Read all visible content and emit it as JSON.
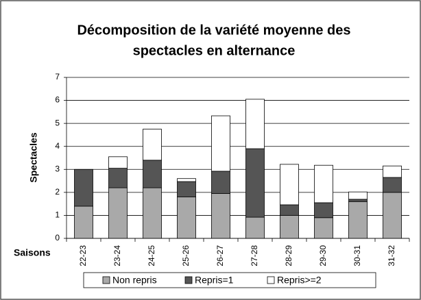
{
  "chart_data": {
    "type": "stacked_bar",
    "title": [
      "Décomposition de la variété moyenne des",
      "spectacles  en alternance"
    ],
    "xlabel": "Saisons",
    "ylabel": "Spectacles",
    "categories": [
      "22-23",
      "23-24",
      "24-25",
      "25-26",
      "26-27",
      "27-28",
      "28-29",
      "29-30",
      "30-31",
      "31-32"
    ],
    "series": [
      {
        "name": "Non repris",
        "color": "#a9a9a9",
        "values": [
          1.4,
          2.2,
          2.2,
          1.8,
          1.95,
          0.92,
          1.0,
          0.9,
          1.6,
          2.0
        ]
      },
      {
        "name": "Repris=1",
        "color": "#555555",
        "values": [
          1.6,
          0.85,
          1.2,
          0.67,
          0.97,
          2.98,
          0.46,
          0.65,
          0.1,
          0.65
        ]
      },
      {
        "name": "Repris>=2",
        "color": "#ffffff",
        "values": [
          0,
          0.5,
          1.35,
          0.13,
          2.41,
          2.15,
          1.76,
          1.63,
          0.32,
          0.5
        ]
      }
    ],
    "ylim": [
      0,
      7
    ],
    "yticks": [
      0,
      1,
      2,
      3,
      4,
      5,
      6,
      7
    ],
    "grid": true,
    "legend": "bottom"
  }
}
